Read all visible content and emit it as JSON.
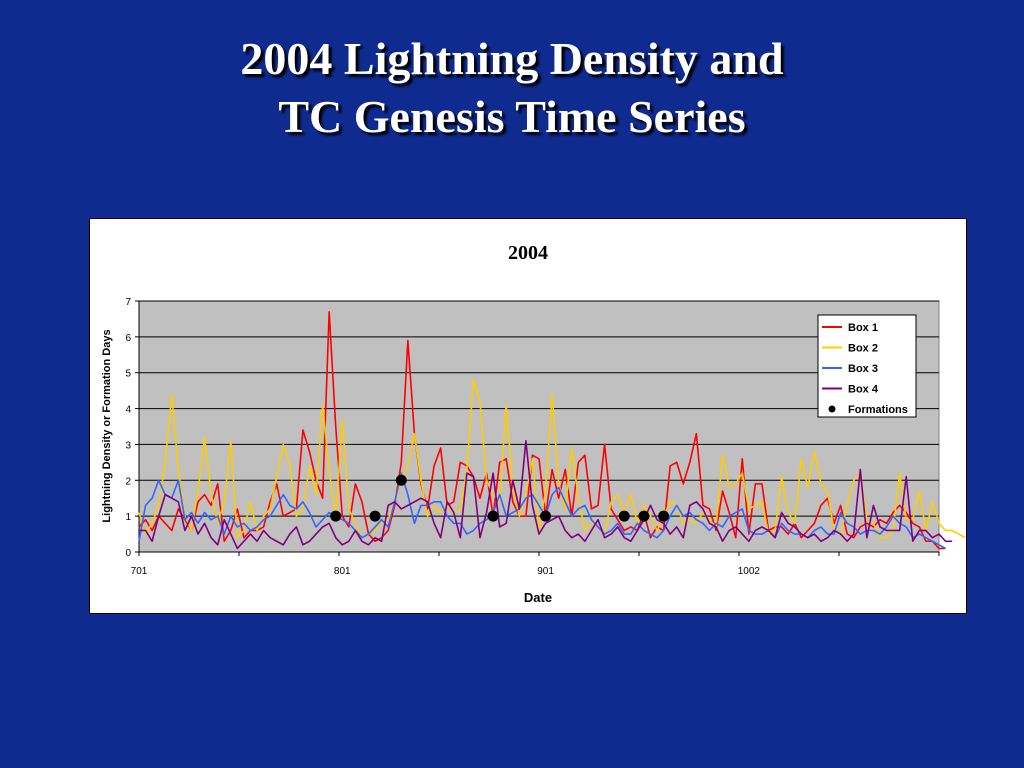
{
  "slide": {
    "title_line1": "2004 Lightning Density and",
    "title_line2": "TC Genesis Time Series"
  },
  "chart_data": {
    "type": "line",
    "title": "2004",
    "xlabel": "Date",
    "ylabel": "Lightning Density or Formation Days",
    "ylim": [
      0,
      7
    ],
    "yticks": [
      0,
      1,
      2,
      3,
      4,
      5,
      6,
      7
    ],
    "x_tick_labels": [
      {
        "day": 0,
        "label": "701"
      },
      {
        "day": 31,
        "label": "801"
      },
      {
        "day": 62,
        "label": "901"
      },
      {
        "day": 93,
        "label": "1002"
      }
    ],
    "x_range_days": [
      0,
      122
    ],
    "grid": "horizontal",
    "plot_background": "#c0c0c0",
    "legend_position": "top-right",
    "series": [
      {
        "name": "Box 1",
        "color": "#ff0000",
        "values": [
          0.7,
          0.9,
          0.6,
          1.0,
          0.8,
          0.6,
          1.2,
          0.9,
          0.6,
          1.4,
          1.6,
          1.3,
          1.9,
          0.3,
          0.6,
          1.2,
          0.4,
          0.6,
          0.6,
          0.7,
          1.4,
          1.9,
          1.0,
          1.1,
          1.2,
          3.4,
          2.8,
          2.0,
          1.5,
          6.7,
          3.5,
          1.0,
          0.7,
          1.9,
          1.4,
          0.5,
          0.3,
          0.4,
          0.6,
          1.3,
          2.5,
          5.9,
          3.3,
          1.9,
          1.2,
          2.4,
          2.9,
          1.3,
          1.4,
          2.5,
          2.4,
          2.1,
          1.5,
          2.2,
          1.0,
          2.5,
          2.6,
          1.4,
          1.0,
          1.0,
          2.7,
          2.6,
          1.0,
          2.3,
          1.5,
          2.3,
          1.0,
          2.5,
          2.7,
          1.2,
          1.3,
          3.0,
          1.2,
          0.9,
          0.6,
          0.7,
          0.6,
          1.1,
          0.4,
          0.7,
          0.6,
          2.4,
          2.5,
          1.9,
          2.5,
          3.3,
          1.3,
          1.2,
          0.6,
          1.7,
          1.1,
          0.4,
          2.6,
          0.5,
          1.9,
          1.9,
          0.6,
          0.7,
          0.7,
          0.5,
          0.8,
          0.4,
          0.6,
          0.8,
          1.3,
          1.5,
          0.8,
          1.3,
          0.5,
          0.4,
          0.7,
          0.8,
          0.7,
          0.9,
          0.8,
          1.1,
          1.3,
          1.1,
          0.8,
          0.7,
          0.3,
          0.3,
          0.1,
          0.1
        ]
      },
      {
        "name": "Box 2",
        "color": "#ffcc00",
        "values": [
          1.1,
          0.5,
          0.8,
          1.3,
          2.5,
          4.4,
          2.3,
          1.0,
          0.6,
          1.7,
          3.2,
          1.6,
          0.8,
          1.4,
          3.1,
          0.4,
          0.6,
          1.4,
          0.6,
          1.0,
          1.2,
          2.1,
          3.0,
          2.4,
          1.0,
          1.2,
          2.4,
          1.6,
          4.1,
          2.3,
          0.9,
          3.7,
          1.2,
          0.8,
          0.4,
          0.5,
          0.6,
          0.8,
          0.9,
          1.4,
          2.0,
          2.4,
          3.3,
          2.0,
          1.0,
          1.3,
          1.1,
          1.3,
          1.1,
          1.2,
          2.3,
          4.8,
          4.2,
          2.0,
          1.6,
          1.4,
          4.1,
          1.8,
          1.0,
          1.6,
          2.6,
          0.6,
          1.7,
          4.4,
          1.9,
          1.2,
          2.9,
          1.5,
          0.6,
          0.8,
          0.7,
          0.5,
          1.4,
          1.6,
          1.1,
          1.6,
          0.8,
          1.3,
          1.0,
          0.6,
          1.0,
          1.4,
          1.3,
          0.8,
          0.9,
          0.8,
          1.1,
          0.9,
          0.7,
          2.7,
          1.8,
          1.9,
          2.2,
          1.2,
          1.3,
          1.4,
          0.5,
          0.6,
          2.1,
          1.1,
          0.8,
          2.6,
          1.8,
          2.8,
          1.9,
          1.7,
          0.6,
          0.5,
          1.3,
          2.0,
          2.2,
          0.9,
          0.8,
          0.4,
          0.4,
          0.6,
          2.2,
          0.9,
          0.9,
          1.7,
          0.6,
          1.4,
          0.8,
          0.6,
          0.6,
          0.5,
          0.4
        ]
      },
      {
        "name": "Box 3",
        "color": "#3366ff",
        "values": [
          0.3,
          1.3,
          1.5,
          2.0,
          1.6,
          1.5,
          2.0,
          0.9,
          1.1,
          0.8,
          1.1,
          0.9,
          1.0,
          0.5,
          1.0,
          0.7,
          0.8,
          0.6,
          0.7,
          0.9,
          1.0,
          1.3,
          1.6,
          1.3,
          1.2,
          1.4,
          1.1,
          0.7,
          0.9,
          1.1,
          1.0,
          0.9,
          0.8,
          0.6,
          0.4,
          0.5,
          0.7,
          0.9,
          0.7,
          1.4,
          2.2,
          1.6,
          0.8,
          1.3,
          1.3,
          1.4,
          1.4,
          1.0,
          0.8,
          0.8,
          0.5,
          0.6,
          0.8,
          0.9,
          1.1,
          1.6,
          1.0,
          1.1,
          1.2,
          1.5,
          1.6,
          1.3,
          1.0,
          1.6,
          1.8,
          1.4,
          1.0,
          1.2,
          1.3,
          0.9,
          0.7,
          0.5,
          0.6,
          0.8,
          0.5,
          0.5,
          0.8,
          0.6,
          0.5,
          0.4,
          0.6,
          1.0,
          1.3,
          1.0,
          1.1,
          0.9,
          0.8,
          0.6,
          0.8,
          0.7,
          1.0,
          1.1,
          1.2,
          0.6,
          0.5,
          0.5,
          0.6,
          0.4,
          0.8,
          0.6,
          0.5,
          0.5,
          0.4,
          0.6,
          0.7,
          0.5,
          0.5,
          1.1,
          0.8,
          0.7,
          0.5,
          0.6,
          0.6,
          0.5,
          0.7,
          1.0,
          0.8,
          0.7,
          0.4,
          0.5,
          0.4,
          0.3,
          0.2,
          0.1
        ]
      },
      {
        "name": "Box 4",
        "color": "#800080",
        "values": [
          0.6,
          0.6,
          0.3,
          1.0,
          1.6,
          1.5,
          1.4,
          0.6,
          1.0,
          0.5,
          0.8,
          0.4,
          0.2,
          0.9,
          0.5,
          0.1,
          0.3,
          0.5,
          0.3,
          0.6,
          0.4,
          0.3,
          0.2,
          0.5,
          0.7,
          0.2,
          0.3,
          0.5,
          0.7,
          0.8,
          0.4,
          0.2,
          0.3,
          0.6,
          0.3,
          0.2,
          0.4,
          0.3,
          1.3,
          1.4,
          1.2,
          1.3,
          1.4,
          1.5,
          1.4,
          0.8,
          0.4,
          1.4,
          1.1,
          0.4,
          2.2,
          2.1,
          0.4,
          1.1,
          2.2,
          0.7,
          0.8,
          2.0,
          1.2,
          3.1,
          1.3,
          0.5,
          0.8,
          0.9,
          1.0,
          0.6,
          0.4,
          0.5,
          0.3,
          0.6,
          0.9,
          0.4,
          0.5,
          0.7,
          0.4,
          0.3,
          0.6,
          0.9,
          1.3,
          0.9,
          0.8,
          0.5,
          0.7,
          0.4,
          1.3,
          1.4,
          1.2,
          0.8,
          0.7,
          0.3,
          0.6,
          0.7,
          0.5,
          0.3,
          0.6,
          0.7,
          0.6,
          0.4,
          1.1,
          0.8,
          0.7,
          0.5,
          0.4,
          0.5,
          0.3,
          0.4,
          0.6,
          0.5,
          0.3,
          0.5,
          2.3,
          0.4,
          1.3,
          0.7,
          0.6,
          0.6,
          0.6,
          2.1,
          0.3,
          0.6,
          0.6,
          0.4,
          0.5,
          0.3,
          0.3
        ]
      },
      {
        "name": "Formations",
        "marker": "circle",
        "color": "#000000",
        "x_days": [
          30,
          36,
          40,
          54,
          62,
          74,
          77,
          80
        ],
        "values": [
          1,
          1,
          2,
          1,
          1,
          1,
          1,
          1
        ]
      }
    ]
  }
}
